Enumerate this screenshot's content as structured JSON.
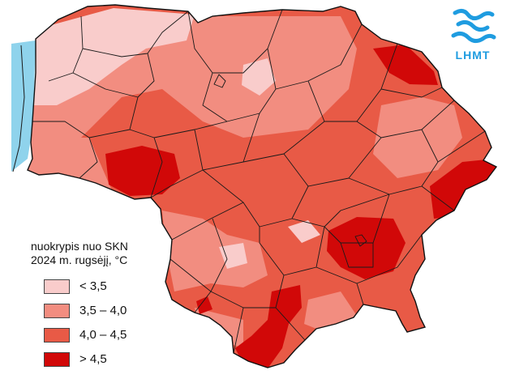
{
  "legend": {
    "title": "nuokrypis nuo SKN",
    "subtitle": "2024 m. rugsėjį, °C",
    "classes": [
      {
        "label": "< 3,5",
        "color": "#f9cccb"
      },
      {
        "label": "3,5 – 4,0",
        "color": "#f28d80"
      },
      {
        "label": "4,0 – 4,5",
        "color": "#e85a46"
      },
      {
        "label": "> 4,5",
        "color": "#d10808"
      }
    ]
  },
  "logo": {
    "text": "LHMT",
    "color": "#1f9ce0"
  },
  "colors": {
    "sea": "#8fd3ec",
    "border": "#1a1a1a",
    "base_fill": "#e85a46"
  }
}
